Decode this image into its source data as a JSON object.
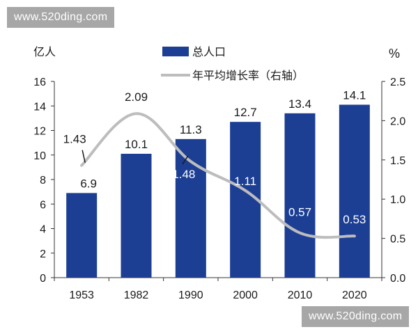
{
  "watermark_text": "www.520ding.com",
  "colors": {
    "bar": "#1c3f94",
    "line": "#bdbdbd",
    "axis": "#333333",
    "text": "#1a1a1a",
    "on_bar_text": "#ffffff",
    "watermark_bg": "#a7a7a7"
  },
  "chart_data": {
    "type": "bar",
    "categories": [
      "1953",
      "1982",
      "1990",
      "2000",
      "2010",
      "2020"
    ],
    "series": [
      {
        "name": "总人口",
        "kind": "bar",
        "axis": "left",
        "values": [
          6.9,
          10.1,
          11.3,
          12.7,
          13.4,
          14.1
        ],
        "labels": [
          "6.9",
          "10.1",
          "11.3",
          "12.7",
          "13.4",
          "14.1"
        ]
      },
      {
        "name": "年平均增长率（右轴）",
        "kind": "line",
        "axis": "right",
        "values": [
          1.43,
          2.09,
          1.48,
          1.11,
          0.57,
          0.53
        ],
        "labels": [
          "1.43",
          "2.09",
          "1.48",
          "1.11",
          "0.57",
          "0.53"
        ]
      }
    ],
    "left_axis": {
      "unit": "亿人",
      "range": [
        0,
        16
      ],
      "ticks": [
        "0",
        "2",
        "4",
        "6",
        "8",
        "10",
        "12",
        "14",
        "16"
      ]
    },
    "right_axis": {
      "unit": "%",
      "range": [
        0,
        2.5
      ],
      "ticks": [
        "0.0",
        "0.5",
        "1.0",
        "1.5",
        "2.0",
        "2.5"
      ]
    },
    "legend_position": "top-center",
    "grid": false
  }
}
